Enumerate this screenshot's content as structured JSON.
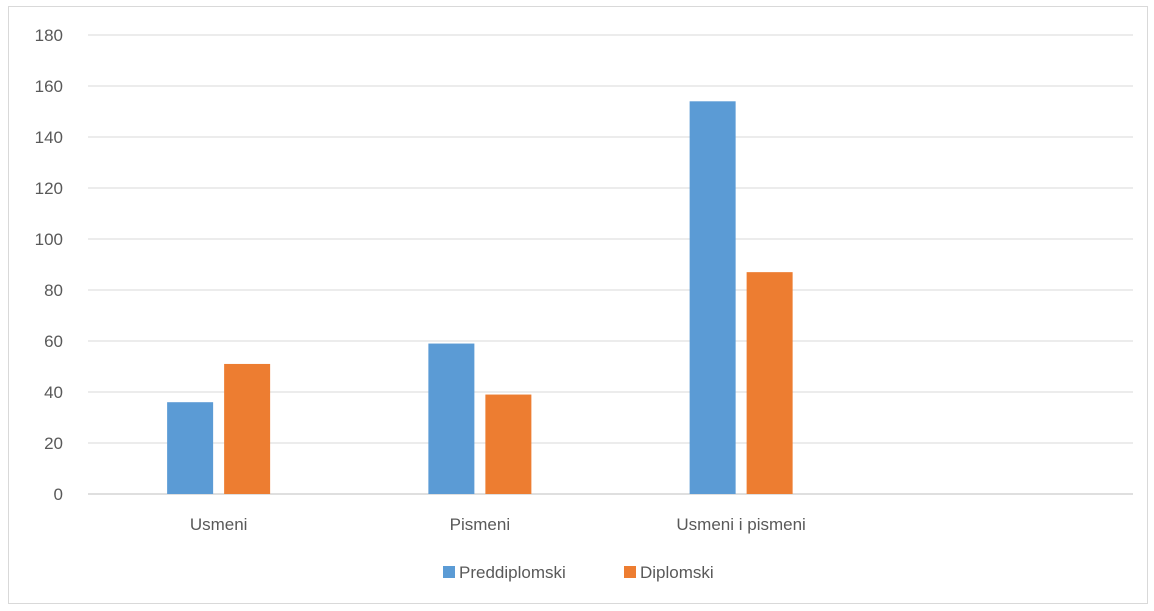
{
  "chart_data": {
    "type": "bar",
    "categories": [
      "Usmeni",
      "Pismeni",
      "Usmeni i pismeni",
      ""
    ],
    "series": [
      {
        "name": "Preddiplomski",
        "color": "#5b9bd5",
        "values": [
          36,
          59,
          154,
          null
        ]
      },
      {
        "name": "Diplomski",
        "color": "#ed7d31",
        "values": [
          51,
          39,
          87,
          null
        ]
      }
    ],
    "ylim": [
      0,
      180
    ],
    "yticks": [
      0,
      20,
      40,
      60,
      80,
      100,
      120,
      140,
      160,
      180
    ],
    "grid": true,
    "legend_position": "bottom"
  }
}
